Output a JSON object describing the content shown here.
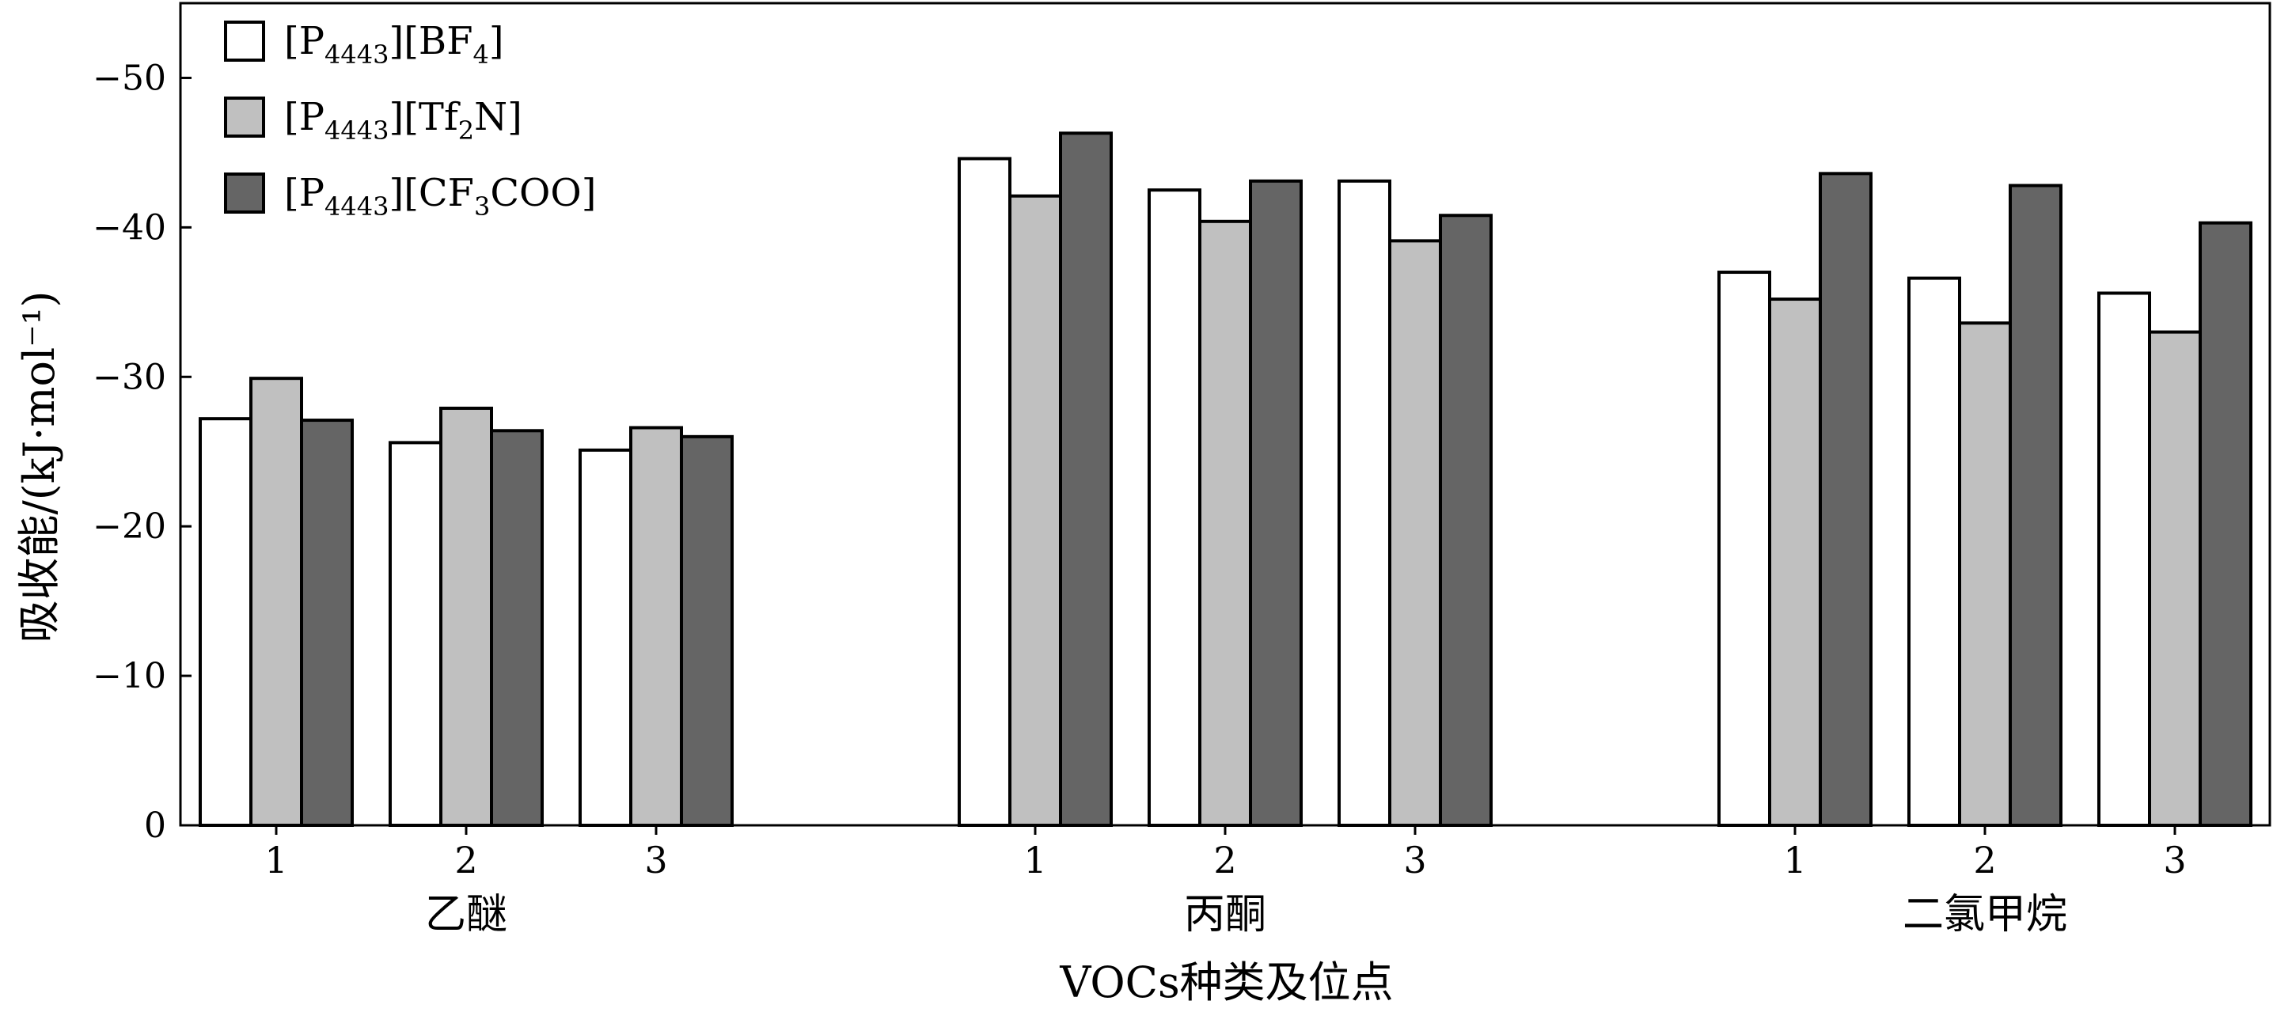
{
  "chart_data": {
    "type": "bar",
    "ylabel": "吸收能/(kJ·mol⁻¹)",
    "xlabel": "VOCs种类及位点",
    "ylim": [
      0,
      -55
    ],
    "yticks": [
      0,
      -10,
      -20,
      -30,
      -40,
      -50
    ],
    "ytick_labels": [
      "0",
      "−10",
      "−20",
      "−30",
      "−40",
      "−50"
    ],
    "groups": [
      {
        "name": "乙醚",
        "sites": [
          "1",
          "2",
          "3"
        ]
      },
      {
        "name": "丙酮",
        "sites": [
          "1",
          "2",
          "3"
        ]
      },
      {
        "name": "二氯甲烷",
        "sites": [
          "1",
          "2",
          "3"
        ]
      }
    ],
    "legend_position": "top-left",
    "series": [
      {
        "name": "[P4443][BF4]",
        "label_parts": [
          "[P",
          "4443",
          "][BF",
          "4",
          "]"
        ],
        "color": "#ffffff",
        "values": [
          -27.2,
          -25.6,
          -25.1,
          -44.6,
          -42.5,
          -43.1,
          -37.0,
          -36.6,
          -35.6
        ]
      },
      {
        "name": "[P4443][Tf2N]",
        "label_parts": [
          "[P",
          "4443",
          "][Tf",
          "2",
          "N]"
        ],
        "color": "#c0c0c0",
        "values": [
          -29.9,
          -27.9,
          -26.6,
          -42.1,
          -40.4,
          -39.1,
          -35.2,
          -33.6,
          -33.0
        ]
      },
      {
        "name": "[P4443][CF3COO]",
        "label_parts": [
          "[P",
          "4443",
          "][CF",
          "3",
          "COO]"
        ],
        "color": "#656565",
        "values": [
          -27.1,
          -26.4,
          -26.0,
          -46.3,
          -43.1,
          -40.8,
          -43.6,
          -42.8,
          -40.3
        ]
      }
    ]
  }
}
